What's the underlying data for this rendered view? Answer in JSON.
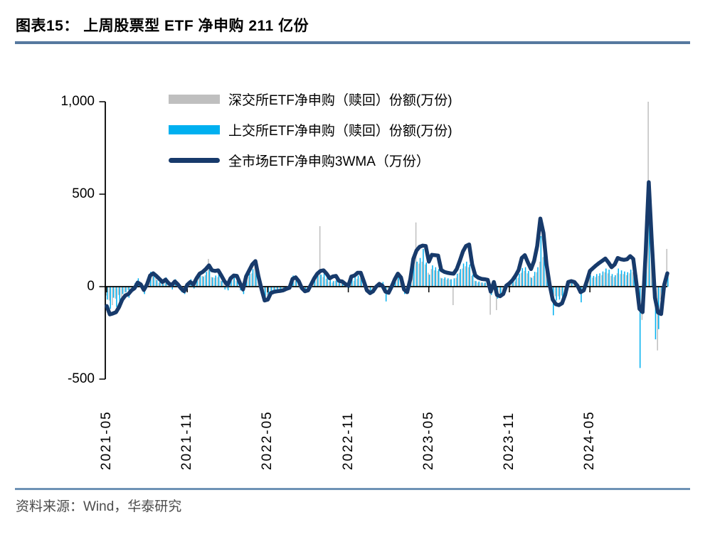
{
  "page": {
    "title_full": "图表15：  上周股票型 ETF 净申购 211 亿份",
    "source": "资料来源：Wind，华泰研究"
  },
  "colors": {
    "title_rule": "#56799F",
    "source_rule": "#6E92B5",
    "axis": "#000000",
    "szse_bar": "#BFBFBF",
    "sse_bar": "#00B0F0",
    "wma_line": "#173A6B",
    "source_text": "#4C4C4C"
  },
  "chart_data": {
    "type": "combo-bar-line",
    "title": "上周股票型 ETF 净申购 211 亿份",
    "xlabel": "",
    "ylabel": "",
    "grid": false,
    "legend_position": "top-left-inside",
    "x_axis": {
      "unit": "week (2021-05 to 2024-10)",
      "ticks": [
        {
          "label": "2021-05",
          "week": 0
        },
        {
          "label": "2021-11",
          "week": 26
        },
        {
          "label": "2022-05",
          "week": 52
        },
        {
          "label": "2022-11",
          "week": 78
        },
        {
          "label": "2023-05",
          "week": 104
        },
        {
          "label": "2023-11",
          "week": 130
        },
        {
          "label": "2024-05",
          "week": 156
        }
      ]
    },
    "y_axis": {
      "ylim": [
        -500,
        1000
      ],
      "ticks": [
        {
          "label": "1,000",
          "value": 1000
        },
        {
          "label": "500",
          "value": 500
        },
        {
          "label": "0",
          "value": 0
        },
        {
          "label": "-500",
          "value": -500
        }
      ]
    },
    "series": [
      {
        "name": "深交所ETF净申购（赎回）份额(万份)",
        "type": "bar",
        "color": "#BFBFBF",
        "values": [
          -48,
          -75,
          -100,
          -65,
          -45,
          -60,
          -32,
          -18,
          -28,
          -22,
          22,
          18,
          -22,
          12,
          48,
          65,
          48,
          22,
          28,
          28,
          18,
          12,
          22,
          12,
          -18,
          -22,
          12,
          18,
          12,
          38,
          48,
          58,
          62,
          150,
          52,
          48,
          52,
          32,
          18,
          -12,
          32,
          42,
          32,
          -8,
          -28,
          48,
          52,
          72,
          140,
          28,
          -32,
          -52,
          -48,
          -28,
          -18,
          -12,
          -18,
          -12,
          -8,
          8,
          38,
          32,
          22,
          -12,
          -22,
          -12,
          18,
          28,
          48,
          327,
          52,
          42,
          28,
          22,
          32,
          18,
          22,
          12,
          8,
          28,
          32,
          42,
          48,
          22,
          -8,
          -28,
          -22,
          -8,
          8,
          12,
          -18,
          -22,
          -8,
          22,
          48,
          28,
          -22,
          -22,
          42,
          115,
          347,
          125,
          135,
          120,
          75,
          95,
          88,
          85,
          48,
          42,
          38,
          38,
          -100,
          48,
          75,
          98,
          110,
          105,
          58,
          32,
          22,
          22,
          18,
          18,
          -152,
          12,
          -127,
          -38,
          -28,
          8,
          12,
          18,
          28,
          48,
          75,
          85,
          72,
          52,
          58,
          78,
          135,
          160,
          125,
          48,
          -38,
          -52,
          -52,
          -48,
          -32,
          18,
          18,
          18,
          8,
          -22,
          -18,
          18,
          48,
          48,
          52,
          58,
          62,
          78,
          72,
          58,
          52,
          72,
          68,
          68,
          62,
          72,
          78,
          52,
          -65,
          -180,
          105,
          1000,
          145,
          -80,
          -345,
          -70,
          20,
          204
        ]
      },
      {
        "name": "上交所ETF净申购（赎回）份额(万份)",
        "type": "bar",
        "color": "#00B0F0",
        "values": [
          -70,
          -120,
          -60,
          -110,
          -85,
          -40,
          -30,
          -60,
          -15,
          20,
          45,
          5,
          -40,
          30,
          80,
          60,
          35,
          30,
          15,
          50,
          5,
          -15,
          40,
          5,
          -30,
          -40,
          25,
          40,
          -10,
          60,
          70,
          55,
          80,
          95,
          50,
          60,
          65,
          30,
          -15,
          -20,
          60,
          50,
          40,
          -20,
          -40,
          75,
          70,
          95,
          105,
          25,
          -50,
          -70,
          -60,
          -25,
          -20,
          -25,
          -18,
          -15,
          -5,
          12,
          60,
          45,
          25,
          -20,
          -35,
          -10,
          30,
          45,
          70,
          65,
          70,
          50,
          35,
          30,
          50,
          25,
          20,
          18,
          -8,
          45,
          50,
          60,
          55,
          30,
          -20,
          -40,
          -35,
          8,
          15,
          25,
          -80,
          -30,
          8,
          35,
          65,
          35,
          -40,
          -30,
          65,
          145,
          135,
          155,
          204,
          130,
          65,
          115,
          105,
          95,
          45,
          50,
          45,
          40,
          45,
          70,
          95,
          125,
          135,
          120,
          65,
          30,
          28,
          22,
          22,
          18,
          -45,
          28,
          -65,
          -50,
          -32,
          18,
          22,
          28,
          50,
          70,
          100,
          105,
          85,
          48,
          80,
          105,
          273,
          180,
          135,
          32,
          -155,
          -75,
          -70,
          -58,
          -42,
          28,
          32,
          28,
          12,
          -85,
          -28,
          28,
          62,
          58,
          68,
          72,
          82,
          98,
          92,
          68,
          62,
          98,
          88,
          82,
          78,
          92,
          98,
          62,
          -440,
          -80,
          135,
          420,
          185,
          -285,
          -230,
          -90,
          30,
          58
        ]
      },
      {
        "name": "全市场ETF净申购3WMA（万份）",
        "type": "line",
        "color": "#173A6B",
        "values": [
          -105,
          -150,
          -145,
          -138,
          -110,
          -70,
          -48,
          -40,
          -20,
          -8,
          22,
          12,
          -18,
          12,
          60,
          72,
          58,
          42,
          25,
          38,
          18,
          8,
          28,
          12,
          -10,
          -25,
          10,
          25,
          12,
          45,
          70,
          80,
          95,
          115,
          88,
          85,
          88,
          60,
          30,
          8,
          45,
          60,
          58,
          20,
          -15,
          55,
          88,
          120,
          138,
          55,
          -15,
          -75,
          -70,
          -35,
          -28,
          -25,
          -23,
          -20,
          -12,
          -6,
          42,
          50,
          30,
          -8,
          -25,
          -20,
          12,
          45,
          70,
          85,
          88,
          70,
          45,
          55,
          58,
          31,
          28,
          15,
          5,
          55,
          60,
          75,
          75,
          30,
          -20,
          -35,
          -25,
          0,
          15,
          5,
          -27,
          -33,
          0,
          40,
          70,
          50,
          -15,
          -30,
          40,
          150,
          195,
          215,
          222,
          220,
          135,
          172,
          170,
          168,
          90,
          80,
          75,
          72,
          70,
          95,
          140,
          190,
          220,
          228,
          120,
          60,
          48,
          42,
          40,
          37,
          -27,
          25,
          -45,
          -52,
          -40,
          5,
          18,
          35,
          60,
          90,
          155,
          170,
          130,
          95,
          140,
          220,
          368,
          290,
          120,
          10,
          -70,
          -95,
          -100,
          -90,
          -45,
          25,
          30,
          25,
          5,
          -30,
          -20,
          30,
          85,
          100,
          115,
          128,
          140,
          152,
          130,
          105,
          120,
          155,
          148,
          145,
          148,
          165,
          150,
          20,
          -120,
          -138,
          180,
          565,
          240,
          -60,
          -140,
          -148,
          10,
          72
        ]
      }
    ]
  }
}
